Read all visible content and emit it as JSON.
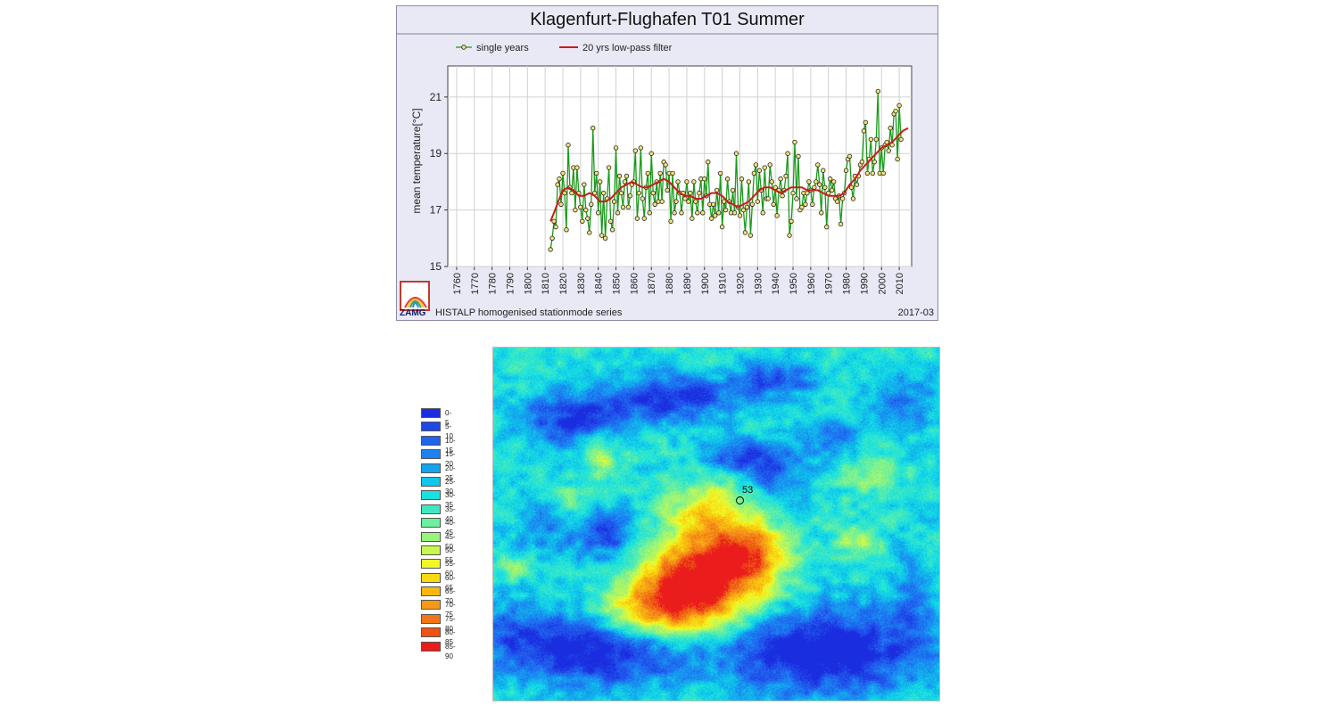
{
  "chart_data": {
    "type": "line",
    "title": "Klagenfurt-Flughafen T01 Summer",
    "xlabel": "",
    "ylabel": "mean temperature[°C]",
    "xlim": [
      1755,
      2017
    ],
    "ylim": [
      15,
      22.1
    ],
    "xticks": [
      1760,
      1770,
      1780,
      1790,
      1800,
      1810,
      1820,
      1830,
      1840,
      1850,
      1860,
      1870,
      1880,
      1890,
      1900,
      1910,
      1920,
      1930,
      1940,
      1950,
      1960,
      1970,
      1980,
      1990,
      2000,
      2010
    ],
    "yticks": [
      15,
      17,
      19,
      21
    ],
    "grid": true,
    "legend_position": "top-left",
    "series": [
      {
        "name": "single years",
        "color": "#1a9a1a",
        "marker": "circle",
        "x_start": 1813,
        "values": [
          15.6,
          16.0,
          16.6,
          16.4,
          17.9,
          18.1,
          17.2,
          18.3,
          17.6,
          16.3,
          19.3,
          17.8,
          17.6,
          18.5,
          17.0,
          18.5,
          17.6,
          17.1,
          16.6,
          17.9,
          17.0,
          16.7,
          16.2,
          17.2,
          19.9,
          17.6,
          18.3,
          16.9,
          18.0,
          16.1,
          17.6,
          16.0,
          17.4,
          18.5,
          16.6,
          16.3,
          17.3,
          19.2,
          16.9,
          18.2,
          17.6,
          17.1,
          18.0,
          18.2,
          17.1,
          17.5,
          17.9,
          18.0,
          19.1,
          16.7,
          17.6,
          19.2,
          17.4,
          16.7,
          17.8,
          18.3,
          16.9,
          19.0,
          17.6,
          17.2,
          18.0,
          17.3,
          18.3,
          17.3,
          18.7,
          18.6,
          17.7,
          18.3,
          16.6,
          18.3,
          16.9,
          17.3,
          18.0,
          17.6,
          16.9,
          17.6,
          17.4,
          18.0,
          17.3,
          17.6,
          16.7,
          18.0,
          17.3,
          16.9,
          17.6,
          18.1,
          16.9,
          18.1,
          17.5,
          18.7,
          17.2,
          16.7,
          17.2,
          16.8,
          17.7,
          16.9,
          18.3,
          16.4,
          17.3,
          17.0,
          18.1,
          17.3,
          16.9,
          17.7,
          16.9,
          19.0,
          17.1,
          16.8,
          18.1,
          17.0,
          16.2,
          17.1,
          18.0,
          16.1,
          17.2,
          18.3,
          18.6,
          17.3,
          18.4,
          17.7,
          16.9,
          18.5,
          17.4,
          17.4,
          18.6,
          18.0,
          17.2,
          17.8,
          16.8,
          17.7,
          18.1,
          17.5,
          17.7,
          18.2,
          19.0,
          16.1,
          16.6,
          17.6,
          19.4,
          17.4,
          18.9,
          17.0,
          17.1,
          17.6,
          17.2,
          17.6,
          18.0,
          17.7,
          17.2,
          17.8,
          18.0,
          18.6,
          17.9,
          16.9,
          18.4,
          17.8,
          16.4,
          17.6,
          18.1,
          17.7,
          18.0,
          17.4,
          17.3,
          17.5,
          16.5,
          17.4,
          17.6,
          18.4,
          18.8,
          18.9,
          17.8,
          17.4,
          18.2,
          17.9,
          18.2,
          18.6,
          18.7,
          19.8,
          20.1,
          18.3,
          18.8,
          19.5,
          18.3,
          18.7,
          19.5,
          21.2,
          18.3,
          19.2,
          18.3,
          19.3,
          19.4,
          19.1,
          19.9,
          19.3,
          20.4,
          20.5,
          18.8,
          20.7,
          19.5
        ]
      },
      {
        "name": "20 yrs low-pass filter",
        "color": "#cc1a1a",
        "x": [
          1813,
          1815,
          1818,
          1820,
          1823,
          1826,
          1829,
          1832,
          1835,
          1838,
          1841,
          1844,
          1847,
          1850,
          1853,
          1856,
          1859,
          1862,
          1865,
          1868,
          1871,
          1874,
          1877,
          1880,
          1883,
          1886,
          1889,
          1892,
          1895,
          1898,
          1901,
          1904,
          1907,
          1910,
          1913,
          1916,
          1919,
          1922,
          1925,
          1928,
          1931,
          1934,
          1937,
          1940,
          1943,
          1946,
          1949,
          1952,
          1955,
          1958,
          1961,
          1964,
          1967,
          1970,
          1973,
          1976,
          1979,
          1982,
          1985,
          1988,
          1991,
          1994,
          1997,
          2000,
          2003,
          2006,
          2009,
          2012,
          2015
        ],
        "values": [
          16.6,
          16.9,
          17.4,
          17.7,
          17.8,
          17.7,
          17.5,
          17.5,
          17.6,
          17.5,
          17.3,
          17.3,
          17.4,
          17.6,
          17.8,
          17.9,
          18.0,
          17.9,
          17.8,
          17.8,
          17.9,
          18.0,
          18.1,
          18.0,
          17.8,
          17.6,
          17.5,
          17.5,
          17.4,
          17.4,
          17.5,
          17.6,
          17.6,
          17.5,
          17.3,
          17.2,
          17.1,
          17.2,
          17.3,
          17.5,
          17.7,
          17.8,
          17.8,
          17.7,
          17.6,
          17.7,
          17.8,
          17.8,
          17.8,
          17.7,
          17.7,
          17.7,
          17.6,
          17.5,
          17.5,
          17.5,
          17.6,
          17.9,
          18.1,
          18.4,
          18.6,
          18.8,
          19.0,
          19.2,
          19.3,
          19.4,
          19.6,
          19.8,
          19.9
        ]
      }
    ]
  },
  "chart_footer": "HISTALP homogenised stationmode series",
  "chart_date": "2017-03",
  "logo_text": "ZAMG",
  "map": {
    "legend": [
      {
        "label": "0-5",
        "color": "#1a2ee0"
      },
      {
        "label": "5-10",
        "color": "#1f48e8"
      },
      {
        "label": "10-15",
        "color": "#1f64ee"
      },
      {
        "label": "15-20",
        "color": "#1c82f2"
      },
      {
        "label": "20-25",
        "color": "#14a4ee"
      },
      {
        "label": "25-30",
        "color": "#10c6ea"
      },
      {
        "label": "30-35",
        "color": "#1ae0e0"
      },
      {
        "label": "35-40",
        "color": "#40e8c0"
      },
      {
        "label": "40-45",
        "color": "#6cf09c"
      },
      {
        "label": "45-50",
        "color": "#98f47a"
      },
      {
        "label": "50-55",
        "color": "#c8f84e"
      },
      {
        "label": "55-60",
        "color": "#f0f828"
      },
      {
        "label": "60-65",
        "color": "#f8da10"
      },
      {
        "label": "65-70",
        "color": "#f8b810"
      },
      {
        "label": "70-75",
        "color": "#f69818"
      },
      {
        "label": "75-80",
        "color": "#f27618"
      },
      {
        "label": "80-85",
        "color": "#ee5214"
      },
      {
        "label": "85-90",
        "color": "#ea1c1c"
      }
    ],
    "station_label": "53"
  }
}
